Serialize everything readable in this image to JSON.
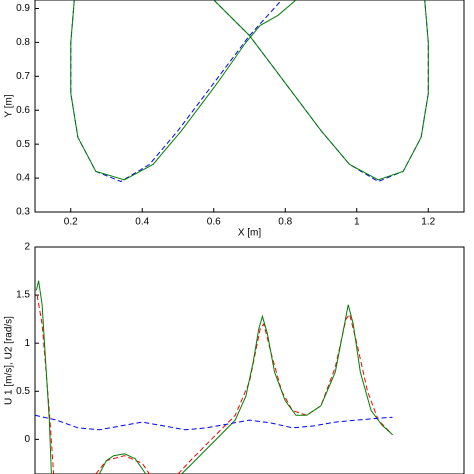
{
  "chart_data": [
    {
      "type": "line",
      "xlabel": "X [m]",
      "ylabel": "Y [m]",
      "xlim": [
        0.1,
        1.3
      ],
      "xticks": [
        0.2,
        0.4,
        0.6,
        0.8,
        1,
        1.2
      ],
      "ylim": [
        0.3,
        0.925
      ],
      "yticks": [
        0.3,
        0.4,
        0.5,
        0.6,
        0.7,
        0.8,
        0.9
      ],
      "series": [
        {
          "color": "#0000ff",
          "dash": true,
          "x": [
            0.21,
            0.2,
            0.2,
            0.22,
            0.27,
            0.34,
            0.42,
            0.5,
            0.6,
            0.7,
            0.79,
            null,
            0.6,
            0.7,
            0.8,
            0.9,
            0.98,
            1.06,
            1.13,
            1.18,
            1.2,
            1.2,
            1.19
          ],
          "values": [
            0.925,
            0.8,
            0.65,
            0.52,
            0.42,
            0.39,
            0.44,
            0.54,
            0.68,
            0.82,
            0.925,
            null,
            0.925,
            0.82,
            0.68,
            0.54,
            0.44,
            0.39,
            0.42,
            0.52,
            0.65,
            0.8,
            0.925
          ]
        },
        {
          "color": "#008000",
          "dash": false,
          "x": [
            0.21,
            0.2,
            0.2,
            0.22,
            0.27,
            0.35,
            0.43,
            0.51,
            0.61,
            0.69,
            0.73,
            0.78,
            0.83,
            null,
            0.6,
            0.7,
            0.8,
            0.9,
            0.98,
            1.06,
            1.13,
            1.18,
            1.2,
            1.2,
            1.19
          ],
          "values": [
            0.925,
            0.8,
            0.65,
            0.52,
            0.42,
            0.395,
            0.44,
            0.54,
            0.68,
            0.8,
            0.85,
            0.88,
            0.925,
            null,
            0.925,
            0.82,
            0.68,
            0.54,
            0.44,
            0.395,
            0.42,
            0.52,
            0.65,
            0.8,
            0.925
          ]
        }
      ]
    },
    {
      "type": "line",
      "ylabel": "U 1 [m/s], U2 [rad/s]",
      "xlim": [
        0,
        60
      ],
      "ylim": [
        -0.36,
        2
      ],
      "yticks": [
        0,
        0.5,
        1,
        1.5,
        2
      ],
      "series": [
        {
          "color": "#ff0000",
          "dash": true,
          "x": [
            0.3,
            1,
            2,
            2.6,
            null,
            8.5,
            10,
            12.5,
            15,
            16,
            null,
            20,
            22,
            24,
            26,
            28,
            30,
            31.5,
            32,
            33,
            34.5,
            36,
            38,
            40,
            42,
            43.5,
            44,
            45,
            46.5,
            48,
            50
          ],
          "values": [
            1.5,
            1.2,
            0.3,
            -0.36,
            null,
            -0.36,
            -0.22,
            -0.17,
            -0.25,
            -0.36,
            null,
            -0.36,
            -0.2,
            -0.05,
            0.1,
            0.25,
            0.6,
            1.15,
            1.2,
            0.9,
            0.5,
            0.3,
            0.25,
            0.35,
            0.75,
            1.25,
            1.3,
            1.0,
            0.5,
            0.2,
            0.05
          ]
        },
        {
          "color": "#008000",
          "dash": false,
          "x": [
            0.2,
            0.5,
            1,
            1.5,
            2,
            2.3,
            null,
            9,
            10,
            11,
            12.5,
            14,
            15.5,
            null,
            20.5,
            22,
            24,
            26,
            28,
            29.5,
            30.5,
            31.3,
            31.8,
            32.5,
            33.5,
            35,
            36.5,
            38,
            40,
            42,
            43.3,
            43.8,
            44.5,
            45.5,
            47,
            48.5,
            50
          ],
          "values": [
            1.55,
            1.65,
            1.4,
            0.8,
            0.2,
            -0.36,
            null,
            -0.36,
            -0.22,
            -0.17,
            -0.15,
            -0.2,
            -0.36,
            null,
            -0.36,
            -0.25,
            -0.1,
            0.05,
            0.2,
            0.45,
            0.8,
            1.15,
            1.28,
            1.1,
            0.7,
            0.4,
            0.25,
            0.25,
            0.35,
            0.7,
            1.2,
            1.4,
            1.2,
            0.7,
            0.3,
            0.15,
            0.05
          ]
        },
        {
          "color": "#0000ff",
          "dash": true,
          "x": [
            0,
            3,
            6,
            9,
            12,
            15,
            18,
            21,
            24,
            27,
            30,
            33,
            36,
            39,
            42,
            45,
            48,
            50
          ],
          "values": [
            0.25,
            0.2,
            0.12,
            0.1,
            0.14,
            0.18,
            0.14,
            0.1,
            0.12,
            0.16,
            0.2,
            0.17,
            0.12,
            0.14,
            0.18,
            0.2,
            0.22,
            0.23
          ]
        }
      ]
    }
  ]
}
